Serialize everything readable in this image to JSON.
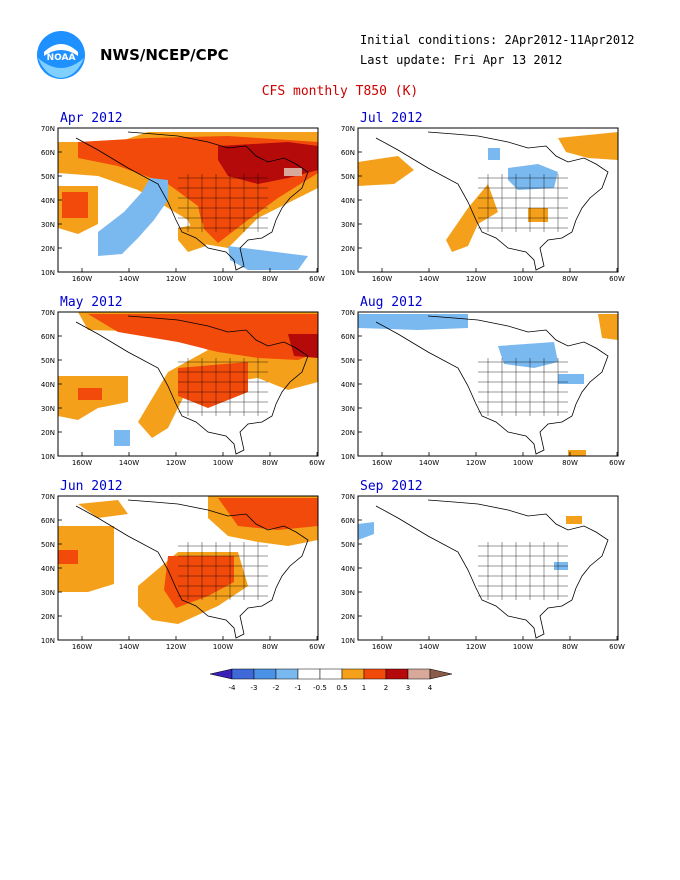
{
  "header": {
    "org": "NWS/NCEP/CPC",
    "initial_conditions": "Initial conditions: 2Apr2012-11Apr2012",
    "last_update": "Last update: Fri Apr 13 2012",
    "title": "CFS monthly T850 (K)",
    "logo_text": "NOAA"
  },
  "axes": {
    "lat_labels": [
      "70N",
      "60N",
      "50N",
      "40N",
      "30N",
      "20N",
      "10N"
    ],
    "lon_labels": [
      "160W",
      "140W",
      "120W",
      "100W",
      "80W",
      "60W"
    ]
  },
  "panels": [
    {
      "title": "Apr 2012",
      "column": 0,
      "row": 0
    },
    {
      "title": "May 2012",
      "column": 0,
      "row": 1
    },
    {
      "title": "Jun 2012",
      "column": 0,
      "row": 2
    },
    {
      "title": "Jul 2012",
      "column": 1,
      "row": 0
    },
    {
      "title": "Aug 2012",
      "column": 1,
      "row": 1
    },
    {
      "title": "Sep 2012",
      "column": 1,
      "row": 2
    }
  ],
  "colorbar": {
    "labels": [
      "-4",
      "-3",
      "-2",
      "-1",
      "-0.5",
      "0.5",
      "1",
      "2",
      "3",
      "4"
    ],
    "colors": [
      "#3a1fb8",
      "#3f68d8",
      "#4b92e6",
      "#7ab8f0",
      "#ffffff",
      "#ffffff",
      "#f5a01a",
      "#f24a0a",
      "#b50a0a",
      "#d8a89a",
      "#8a5a4a"
    ]
  },
  "palette": {
    "warm1": "#f5a01a",
    "warm2": "#f24a0a",
    "warm3": "#b50a0a",
    "warm4": "#d8a89a",
    "cool1": "#7ab8f0",
    "cool2": "#4b92e6"
  }
}
